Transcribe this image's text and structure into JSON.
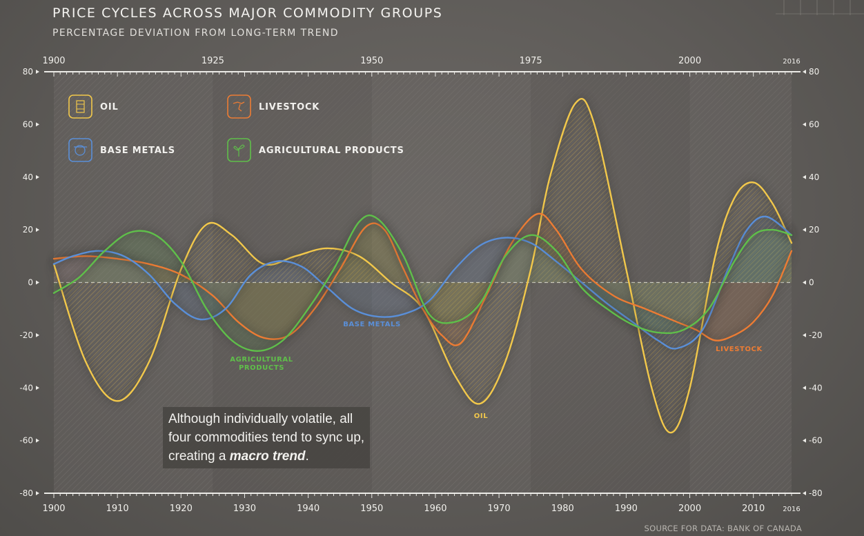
{
  "title": "PRICE CYCLES ACROSS MAJOR COMMODITY GROUPS",
  "subtitle": "PERCENTAGE DEVIATION FROM LONG-TERM TREND",
  "source": "SOURCE FOR DATA: BANK OF CANADA",
  "annotation": {
    "line1": "Although individually volatile, all",
    "line2": "four commodities tend to sync up,",
    "line3_prefix": "creating a ",
    "line3_emph": "macro trend",
    "line3_suffix": "."
  },
  "chart_data": {
    "type": "line",
    "xlim": [
      1900,
      2016
    ],
    "ylim": [
      -80,
      80
    ],
    "x_ticks_top": [
      "1900",
      "1925",
      "1950",
      "1975",
      "2000",
      "2016"
    ],
    "x_ticks_bottom": [
      "1900",
      "1910",
      "1920",
      "1930",
      "1940",
      "1950",
      "1960",
      "1970",
      "1980",
      "1990",
      "2000",
      "2010",
      "2016"
    ],
    "y_ticks": [
      80,
      60,
      40,
      20,
      0,
      -20,
      -40,
      -60,
      -80
    ],
    "zero_line": "dashed",
    "legend_position": "top-left",
    "series": [
      {
        "name": "OIL",
        "color": "#f2c84b",
        "icon": "oil-barrel-icon",
        "x": [
          1900,
          1905,
          1910,
          1915,
          1920,
          1924,
          1928,
          1933,
          1938,
          1943,
          1948,
          1953,
          1958,
          1963,
          1967,
          1971,
          1975,
          1978,
          1982,
          1985,
          1990,
          1994,
          1997,
          2000,
          2004,
          2007,
          2010,
          2013,
          2016
        ],
        "y": [
          7,
          -30,
          -45,
          -30,
          5,
          22,
          18,
          7,
          10,
          13,
          10,
          0,
          -10,
          -35,
          -46,
          -30,
          5,
          40,
          68,
          60,
          5,
          -40,
          -57,
          -40,
          10,
          32,
          38,
          30,
          15
        ]
      },
      {
        "name": "LIVESTOCK",
        "color": "#ec7c34",
        "icon": "livestock-icon",
        "series_label": "LIVESTOCK",
        "x": [
          1900,
          1905,
          1910,
          1915,
          1920,
          1925,
          1929,
          1933,
          1937,
          1941,
          1945,
          1949,
          1952,
          1955,
          1958,
          1961,
          1964,
          1968,
          1972,
          1976,
          1979,
          1983,
          1988,
          1993,
          1998,
          2001,
          2004,
          2007,
          2010,
          2013,
          2016
        ],
        "y": [
          9,
          10,
          9,
          7,
          3,
          -5,
          -15,
          -21,
          -20,
          -10,
          5,
          21,
          20,
          5,
          -10,
          -20,
          -23,
          -5,
          15,
          26,
          20,
          5,
          -5,
          -10,
          -15,
          -18,
          -22,
          -20,
          -15,
          -5,
          12
        ]
      },
      {
        "name": "BASE METALS",
        "color": "#5a8fd8",
        "icon": "base-metals-icon",
        "series_label": "BASE METALS",
        "x": [
          1900,
          1903,
          1907,
          1911,
          1915,
          1919,
          1923,
          1927,
          1931,
          1935,
          1939,
          1943,
          1947,
          1951,
          1955,
          1959,
          1963,
          1967,
          1971,
          1975,
          1979,
          1983,
          1987,
          1991,
          1995,
          1998,
          2002,
          2006,
          2009,
          2012,
          2016
        ],
        "y": [
          7,
          10,
          12,
          10,
          3,
          -8,
          -14,
          -10,
          3,
          8,
          6,
          -2,
          -10,
          -13,
          -12,
          -7,
          5,
          14,
          17,
          15,
          8,
          0,
          -8,
          -15,
          -22,
          -25,
          -18,
          5,
          20,
          25,
          18
        ]
      },
      {
        "name": "AGRICULTURAL PRODUCTS",
        "color": "#5fbf4a",
        "icon": "agriculture-icon",
        "series_label": "AGRICULTURAL\nPRODUCTS",
        "x": [
          1900,
          1904,
          1908,
          1912,
          1916,
          1920,
          1924,
          1928,
          1932,
          1936,
          1940,
          1944,
          1948,
          1951,
          1955,
          1959,
          1963,
          1967,
          1971,
          1975,
          1979,
          1983,
          1987,
          1991,
          1995,
          1999,
          2003,
          2007,
          2010,
          2013,
          2016
        ],
        "y": [
          -4,
          2,
          12,
          19,
          18,
          8,
          -10,
          -22,
          -26,
          -22,
          -10,
          5,
          23,
          24,
          10,
          -12,
          -15,
          -8,
          10,
          18,
          12,
          -2,
          -10,
          -16,
          -19,
          -18,
          -10,
          8,
          18,
          20,
          18
        ]
      }
    ]
  }
}
